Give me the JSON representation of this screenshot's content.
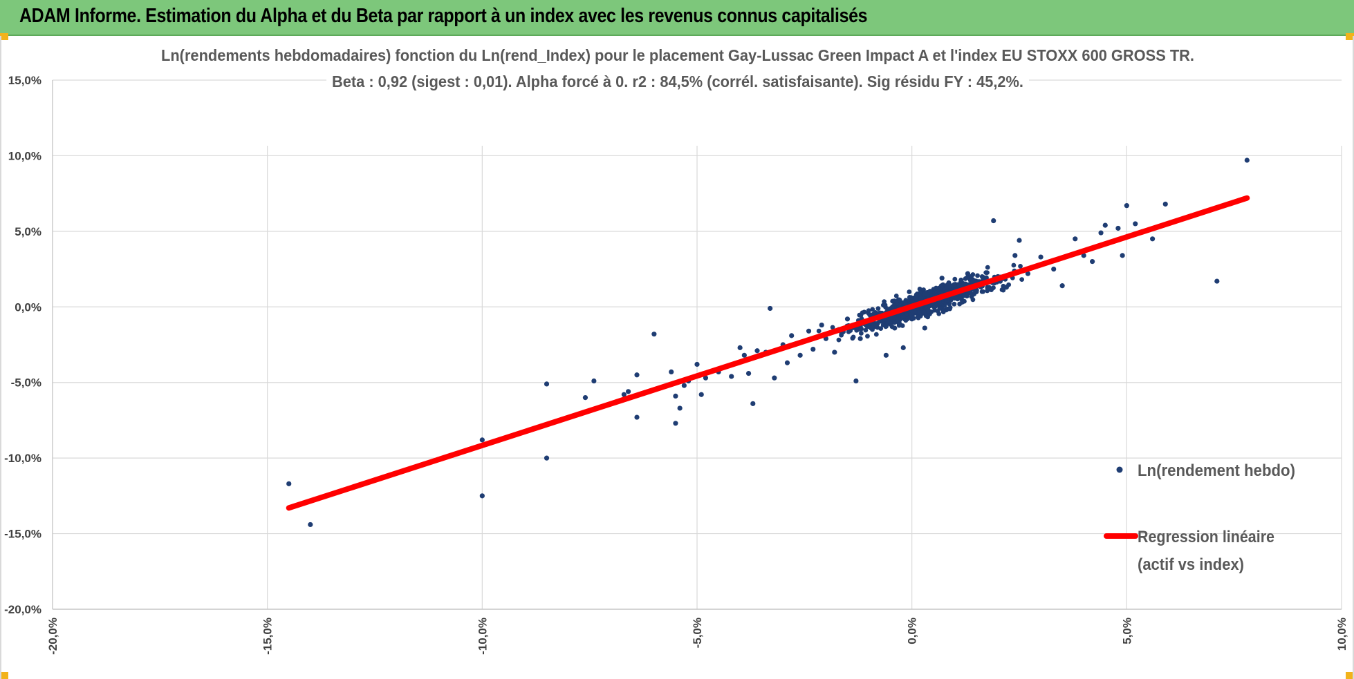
{
  "header": {
    "title": "ADAM Informe. Estimation du Alpha et du Beta par rapport à un index avec les revenus connus capitalisés"
  },
  "colors": {
    "banner": "#7dc77b",
    "points": "#1f3d73",
    "regression": "#ff0000",
    "grid": "#d9d9d9"
  },
  "chart_data": {
    "type": "scatter",
    "title": "Ln(rendements hebdomadaires) fonction du Ln(rend_Index) pour le placement Gay-Lussac Green Impact A et l'index EU STOXX 600 GROSS TR.",
    "subtitle": "Beta : 0,92 (sigest : 0,01). Alpha forcé à 0. r2 : 84,5% (corrél. satisfaisante). Sig résidu FY : 45,2%.",
    "xlim": [
      -20,
      10
    ],
    "ylim": [
      -20,
      15
    ],
    "x_ticks": [
      "-20,0%",
      "-15,0%",
      "-10,0%",
      "-5,0%",
      "0,0%",
      "5,0%",
      "10,0%"
    ],
    "y_ticks": [
      "15,0%",
      "10,0%",
      "5,0%",
      "0,0%",
      "-5,0%",
      "-10,0%",
      "-15,0%",
      "-20,0%"
    ],
    "grid": true,
    "legend_position": "right",
    "series": [
      {
        "name": "Ln(rendement hebdo)",
        "kind": "scatter",
        "points": [
          [
            -14.5,
            -11.7
          ],
          [
            -14.0,
            -14.4
          ],
          [
            -10.0,
            -12.5
          ],
          [
            -10.0,
            -8.8
          ],
          [
            -8.5,
            -10.0
          ],
          [
            -8.5,
            -5.1
          ],
          [
            -7.6,
            -6.0
          ],
          [
            -7.4,
            -4.9
          ],
          [
            -6.7,
            -5.8
          ],
          [
            -6.6,
            -5.6
          ],
          [
            -6.4,
            -7.3
          ],
          [
            -6.4,
            -4.5
          ],
          [
            -6.0,
            -1.8
          ],
          [
            -5.5,
            -5.9
          ],
          [
            -5.6,
            -4.3
          ],
          [
            -5.5,
            -7.7
          ],
          [
            -5.4,
            -6.7
          ],
          [
            -5.3,
            -5.2
          ],
          [
            -5.2,
            -4.9
          ],
          [
            -5.0,
            -3.8
          ],
          [
            -4.9,
            -5.8
          ],
          [
            -4.8,
            -4.7
          ],
          [
            -4.5,
            -4.3
          ],
          [
            -4.2,
            -4.6
          ],
          [
            -4.0,
            -2.7
          ],
          [
            -3.9,
            -3.2
          ],
          [
            -3.8,
            -4.4
          ],
          [
            -3.7,
            -6.4
          ],
          [
            -3.6,
            -2.9
          ],
          [
            -3.4,
            -3.0
          ],
          [
            -3.3,
            -0.1
          ],
          [
            -3.2,
            -4.7
          ],
          [
            -3.0,
            -2.5
          ],
          [
            -2.9,
            -3.7
          ],
          [
            -2.8,
            -1.9
          ],
          [
            -2.6,
            -3.2
          ],
          [
            -2.4,
            -1.6
          ],
          [
            -2.3,
            -2.8
          ],
          [
            -2.1,
            -1.2
          ],
          [
            -2.0,
            -2.1
          ],
          [
            -1.8,
            -3.0
          ],
          [
            -1.7,
            -1.5
          ],
          [
            -1.5,
            -0.8
          ],
          [
            -1.3,
            -4.9
          ],
          [
            -1.2,
            -2.1
          ],
          [
            -1.0,
            -1.3
          ],
          [
            -0.8,
            -1.1
          ],
          [
            -0.6,
            -3.2
          ],
          [
            -0.4,
            -1.4
          ],
          [
            -0.2,
            -2.7
          ],
          [
            0.0,
            -0.8
          ],
          [
            0.2,
            0.8
          ],
          [
            0.3,
            -1.4
          ],
          [
            0.5,
            0.4
          ],
          [
            0.7,
            1.9
          ],
          [
            0.8,
            -0.2
          ],
          [
            1.0,
            1.4
          ],
          [
            1.1,
            0.6
          ],
          [
            1.3,
            2.2
          ],
          [
            1.5,
            1.0
          ],
          [
            1.7,
            1.7
          ],
          [
            1.9,
            5.7
          ],
          [
            2.0,
            2.0
          ],
          [
            2.2,
            1.3
          ],
          [
            2.4,
            3.4
          ],
          [
            2.5,
            4.4
          ],
          [
            2.7,
            2.2
          ],
          [
            3.0,
            3.3
          ],
          [
            3.3,
            2.5
          ],
          [
            3.5,
            1.4
          ],
          [
            3.8,
            4.5
          ],
          [
            4.0,
            3.4
          ],
          [
            4.2,
            3.0
          ],
          [
            4.4,
            4.9
          ],
          [
            4.5,
            5.4
          ],
          [
            4.8,
            5.2
          ],
          [
            4.9,
            3.4
          ],
          [
            5.0,
            6.7
          ],
          [
            5.2,
            5.5
          ],
          [
            5.6,
            4.5
          ],
          [
            5.9,
            6.8
          ],
          [
            7.1,
            1.7
          ],
          [
            7.8,
            9.7
          ]
        ]
      },
      {
        "name": "Regression linéaire (actif vs index)",
        "kind": "line",
        "points": [
          [
            -14.5,
            -13.3
          ],
          [
            7.8,
            7.2
          ]
        ]
      }
    ]
  },
  "legend": {
    "scatter_label": "Ln(rendement hebdo)",
    "line_label_1": "Regression linéaire",
    "line_label_2": "(actif vs index)"
  }
}
